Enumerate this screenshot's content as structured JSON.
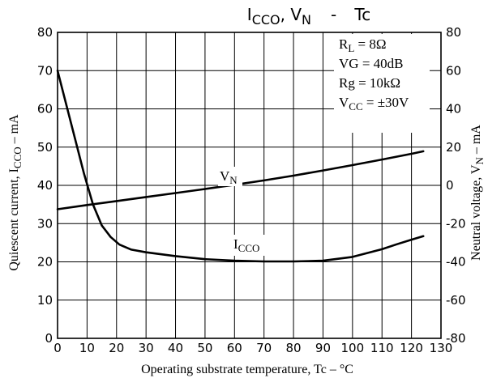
{
  "chart_data": {
    "type": "line",
    "title": {
      "part1_main": "I",
      "part1_sub": "CCO",
      "part1_tail": ", ",
      "part2_main": "V",
      "part2_sub": "N",
      "dash": "-",
      "part3": "Tc"
    },
    "xlabel": "Operating substrate temperature, Tc – °C",
    "ylabel_left": {
      "pre": "Quiescent current, I",
      "sub": "CCO",
      "post": " – mA"
    },
    "ylabel_right": {
      "pre": "Neutral voltage, V",
      "sub": "N",
      "post": " – mA"
    },
    "x_ticks": [
      "0",
      "10",
      "20",
      "30",
      "40",
      "50",
      "60",
      "70",
      "80",
      "90",
      "100",
      "110",
      "120",
      "130"
    ],
    "y_left_ticks": [
      "0",
      "10",
      "20",
      "30",
      "40",
      "50",
      "60",
      "70",
      "80"
    ],
    "y_right_ticks": [
      "-80",
      "-60",
      "-40",
      "-20",
      "0",
      "20",
      "40",
      "60",
      "80"
    ],
    "xlim": [
      0,
      130
    ],
    "ylim_left": [
      0,
      80
    ],
    "ylim_right": [
      -80,
      80
    ],
    "grid": true,
    "conditions": [
      {
        "main": "R",
        "sub": "L",
        "rest": " = 8Ω"
      },
      {
        "main": "VG",
        "sub": "",
        "rest": " = 40dB"
      },
      {
        "main": "Rg",
        "sub": "",
        "rest": " = 10kΩ"
      },
      {
        "main": "V",
        "sub": "CC",
        "rest": " = ±30V"
      }
    ],
    "series": [
      {
        "name_main": "I",
        "name_sub": "CCO",
        "axis": "left",
        "x": [
          0,
          3,
          6,
          9,
          12,
          15,
          18,
          21,
          25,
          30,
          40,
          50,
          60,
          70,
          80,
          90,
          100,
          110,
          115,
          120,
          124
        ],
        "y": [
          70,
          61,
          52,
          43,
          35,
          29.5,
          26.5,
          24.5,
          23.2,
          22.5,
          21.5,
          20.7,
          20.3,
          20.1,
          20.1,
          20.3,
          21.3,
          23.3,
          24.6,
          25.8,
          26.7
        ]
      },
      {
        "name_main": "V",
        "name_sub": "N",
        "axis": "right",
        "x": [
          0,
          10,
          20,
          30,
          40,
          50,
          60,
          70,
          80,
          90,
          100,
          110,
          120,
          124
        ],
        "y": [
          -12.5,
          -10.3,
          -8.2,
          -6.1,
          -4.0,
          -1.9,
          0.3,
          2.6,
          5.1,
          7.8,
          10.6,
          13.5,
          16.5,
          17.8
        ]
      }
    ]
  }
}
